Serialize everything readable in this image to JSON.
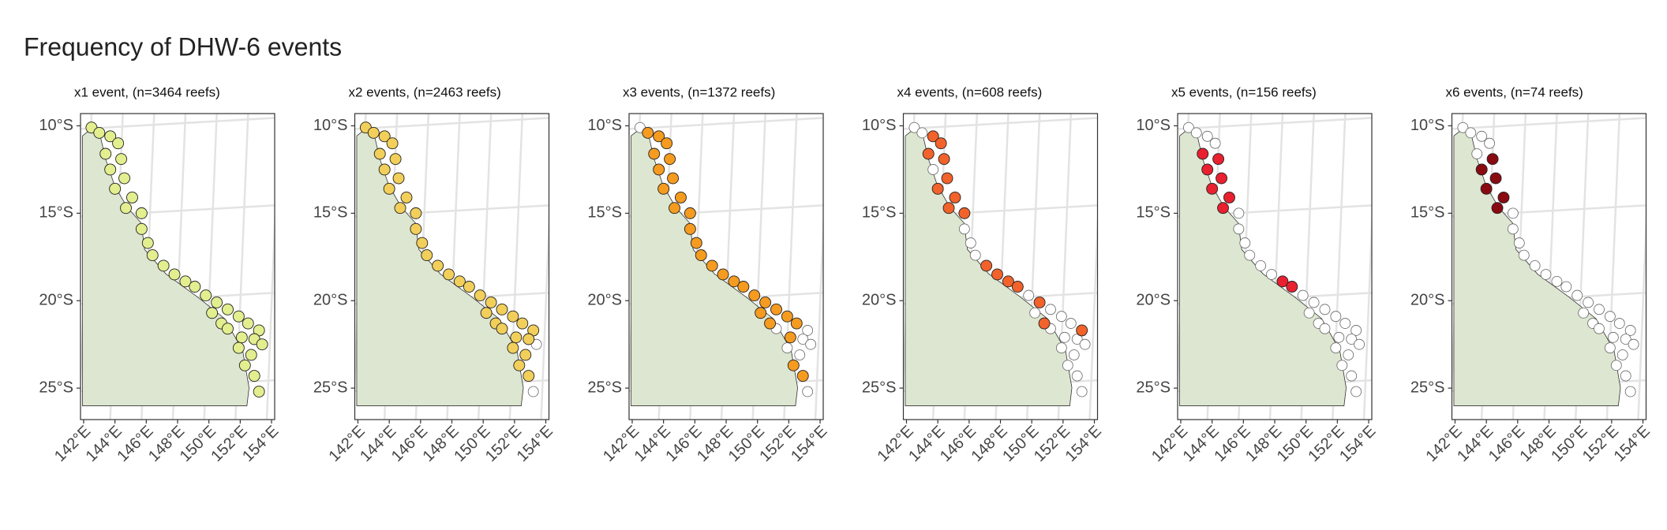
{
  "title": "Frequency of DHW-6 events",
  "all_reefs": {
    "x": [
      142.5,
      143.0,
      143.7,
      144.2,
      143.4,
      144.4,
      143.7,
      144.6,
      144.0,
      145.1,
      144.7,
      145.7,
      145.7,
      146.1,
      146.4,
      147.1,
      147.8,
      148.5,
      149.1,
      149.8,
      150.5,
      151.2,
      151.9,
      152.5,
      153.2,
      152.9,
      152.1,
      150.8,
      150.2,
      153.4,
      152.7,
      152.3,
      152.9,
      153.2,
      151.2,
      151.9
    ],
    "y": [
      -10.1,
      -10.4,
      -10.6,
      -11.0,
      -11.6,
      -11.9,
      -12.5,
      -13.0,
      -13.6,
      -14.1,
      -14.7,
      -15.0,
      -15.9,
      -16.7,
      -17.4,
      -18.0,
      -18.5,
      -18.9,
      -19.2,
      -19.7,
      -20.1,
      -20.5,
      -20.9,
      -21.3,
      -21.7,
      -22.2,
      -22.1,
      -21.3,
      -20.7,
      -22.5,
      -23.1,
      -23.7,
      -24.3,
      -25.2,
      -21.6,
      -22.7
    ]
  },
  "chart_data": [
    {
      "type": "scatter",
      "title": "x1 event, (n=3464 reefs)",
      "color": "#e3ee8f",
      "x": [
        142.5,
        143.0,
        143.7,
        144.2,
        143.4,
        144.4,
        143.7,
        144.6,
        144.0,
        145.1,
        144.7,
        145.7,
        145.7,
        146.1,
        146.4,
        147.1,
        147.8,
        148.5,
        149.1,
        149.8,
        150.5,
        151.2,
        151.9,
        152.5,
        153.2,
        152.9,
        152.1,
        150.8,
        150.2,
        153.4,
        152.7,
        152.3,
        152.9,
        153.2,
        151.2,
        151.9
      ],
      "y": [
        -10.1,
        -10.4,
        -10.6,
        -11.0,
        -11.6,
        -11.9,
        -12.5,
        -13.0,
        -13.6,
        -14.1,
        -14.7,
        -15.0,
        -15.9,
        -16.7,
        -17.4,
        -18.0,
        -18.5,
        -18.9,
        -19.2,
        -19.7,
        -20.1,
        -20.5,
        -20.9,
        -21.3,
        -21.7,
        -22.2,
        -22.1,
        -21.3,
        -20.7,
        -22.5,
        -23.1,
        -23.7,
        -24.3,
        -25.2,
        -21.6,
        -22.7
      ],
      "xlim": [
        141.8,
        154.2
      ],
      "ylim": [
        -26.8,
        -9.3
      ],
      "grid": true,
      "xticks": [
        {
          "value": 142,
          "label": "142°E"
        },
        {
          "value": 144,
          "label": "144°E"
        },
        {
          "value": 146,
          "label": "146°E"
        },
        {
          "value": 148,
          "label": "148°E"
        },
        {
          "value": 150,
          "label": "150°E"
        },
        {
          "value": 152,
          "label": "152°E"
        },
        {
          "value": 154,
          "label": "154°E"
        }
      ],
      "yticks": [
        {
          "value": -10,
          "label": "10°S"
        },
        {
          "value": -15,
          "label": "15°S"
        },
        {
          "value": -20,
          "label": "20°S"
        },
        {
          "value": -25,
          "label": "25°S"
        }
      ]
    },
    {
      "type": "scatter",
      "title": "x2 events, (n=2463 reefs)",
      "color": "#f2cf5a",
      "x": [
        142.5,
        143.0,
        143.7,
        144.2,
        143.4,
        144.4,
        143.7,
        144.6,
        144.0,
        145.1,
        144.7,
        145.7,
        145.7,
        146.1,
        146.4,
        147.1,
        147.8,
        148.5,
        149.1,
        149.8,
        150.5,
        151.2,
        151.9,
        152.5,
        153.2,
        152.9,
        152.1,
        150.8,
        150.2,
        152.7,
        152.3,
        152.9,
        151.2,
        151.9
      ],
      "y": [
        -10.1,
        -10.4,
        -10.6,
        -11.0,
        -11.6,
        -11.9,
        -12.5,
        -13.0,
        -13.6,
        -14.1,
        -14.7,
        -15.0,
        -15.9,
        -16.7,
        -17.4,
        -18.0,
        -18.5,
        -18.9,
        -19.2,
        -19.7,
        -20.1,
        -20.5,
        -20.9,
        -21.3,
        -21.7,
        -22.2,
        -22.1,
        -21.3,
        -20.7,
        -23.1,
        -23.7,
        -24.3,
        -21.6,
        -22.7
      ],
      "xlim": [
        141.8,
        154.2
      ],
      "ylim": [
        -26.8,
        -9.3
      ],
      "grid": true,
      "xticks": [
        {
          "value": 142,
          "label": "142°E"
        },
        {
          "value": 144,
          "label": "144°E"
        },
        {
          "value": 146,
          "label": "146°E"
        },
        {
          "value": 148,
          "label": "148°E"
        },
        {
          "value": 150,
          "label": "150°E"
        },
        {
          "value": 152,
          "label": "152°E"
        },
        {
          "value": 154,
          "label": "154°E"
        }
      ],
      "yticks": [
        {
          "value": -10,
          "label": "10°S"
        },
        {
          "value": -15,
          "label": "15°S"
        },
        {
          "value": -20,
          "label": "20°S"
        },
        {
          "value": -25,
          "label": "25°S"
        }
      ]
    },
    {
      "type": "scatter",
      "title": "x3 events, (n=1372 reefs)",
      "color": "#f59b1f",
      "x": [
        143.0,
        143.7,
        144.2,
        143.4,
        144.4,
        143.7,
        144.6,
        144.0,
        145.1,
        144.7,
        145.7,
        145.7,
        146.1,
        146.4,
        147.1,
        147.8,
        148.5,
        149.1,
        149.8,
        150.5,
        151.2,
        151.9,
        152.5,
        152.1,
        150.8,
        150.2,
        152.3,
        152.9
      ],
      "y": [
        -10.4,
        -10.6,
        -11.0,
        -11.6,
        -11.9,
        -12.5,
        -13.0,
        -13.6,
        -14.1,
        -14.7,
        -15.0,
        -15.9,
        -16.7,
        -17.4,
        -18.0,
        -18.5,
        -18.9,
        -19.2,
        -19.7,
        -20.1,
        -20.5,
        -20.9,
        -21.3,
        -22.1,
        -21.3,
        -20.7,
        -23.7,
        -24.3
      ],
      "xlim": [
        141.8,
        154.2
      ],
      "ylim": [
        -26.8,
        -9.3
      ],
      "grid": true,
      "xticks": [
        {
          "value": 142,
          "label": "142°E"
        },
        {
          "value": 144,
          "label": "144°E"
        },
        {
          "value": 146,
          "label": "146°E"
        },
        {
          "value": 148,
          "label": "148°E"
        },
        {
          "value": 150,
          "label": "150°E"
        },
        {
          "value": 152,
          "label": "152°E"
        },
        {
          "value": 154,
          "label": "154°E"
        }
      ],
      "yticks": [
        {
          "value": -10,
          "label": "10°S"
        },
        {
          "value": -15,
          "label": "15°S"
        },
        {
          "value": -20,
          "label": "20°S"
        },
        {
          "value": -25,
          "label": "25°S"
        }
      ]
    },
    {
      "type": "scatter",
      "title": "x4 events, (n=608 reefs)",
      "color": "#f2622b",
      "x": [
        143.7,
        144.2,
        143.4,
        144.4,
        144.6,
        144.0,
        145.1,
        144.7,
        145.7,
        147.1,
        147.8,
        148.5,
        149.1,
        150.5,
        150.8,
        153.2
      ],
      "y": [
        -10.6,
        -11.0,
        -11.6,
        -11.9,
        -13.0,
        -13.6,
        -14.1,
        -14.7,
        -15.0,
        -18.0,
        -18.5,
        -18.9,
        -19.2,
        -20.1,
        -21.3,
        -21.7
      ],
      "xlim": [
        141.8,
        154.2
      ],
      "ylim": [
        -26.8,
        -9.3
      ],
      "grid": true,
      "xticks": [
        {
          "value": 142,
          "label": "142°E"
        },
        {
          "value": 144,
          "label": "144°E"
        },
        {
          "value": 146,
          "label": "146°E"
        },
        {
          "value": 148,
          "label": "148°E"
        },
        {
          "value": 150,
          "label": "150°E"
        },
        {
          "value": 152,
          "label": "152°E"
        },
        {
          "value": 154,
          "label": "154°E"
        }
      ],
      "yticks": [
        {
          "value": -10,
          "label": "10°S"
        },
        {
          "value": -15,
          "label": "15°S"
        },
        {
          "value": -20,
          "label": "20°S"
        },
        {
          "value": -25,
          "label": "25°S"
        }
      ]
    },
    {
      "type": "scatter",
      "title": "x5 events, (n=156 reefs)",
      "color": "#e8202f",
      "x": [
        143.4,
        144.4,
        143.7,
        144.6,
        144.0,
        145.1,
        144.7,
        148.5,
        149.1
      ],
      "y": [
        -11.6,
        -11.9,
        -12.5,
        -13.0,
        -13.6,
        -14.1,
        -14.7,
        -18.9,
        -19.2
      ],
      "xlim": [
        141.8,
        154.2
      ],
      "ylim": [
        -26.8,
        -9.3
      ],
      "grid": true,
      "xticks": [
        {
          "value": 142,
          "label": "142°E"
        },
        {
          "value": 144,
          "label": "144°E"
        },
        {
          "value": 146,
          "label": "146°E"
        },
        {
          "value": 148,
          "label": "148°E"
        },
        {
          "value": 150,
          "label": "150°E"
        },
        {
          "value": 152,
          "label": "152°E"
        },
        {
          "value": 154,
          "label": "154°E"
        }
      ],
      "yticks": [
        {
          "value": -10,
          "label": "10°S"
        },
        {
          "value": -15,
          "label": "15°S"
        },
        {
          "value": -20,
          "label": "20°S"
        },
        {
          "value": -25,
          "label": "25°S"
        }
      ]
    },
    {
      "type": "scatter",
      "title": "x6 events, (n=74 reefs)",
      "color": "#8a0a12",
      "x": [
        144.4,
        143.7,
        144.6,
        144.0,
        145.1,
        144.7
      ],
      "y": [
        -11.9,
        -12.5,
        -13.0,
        -13.6,
        -14.1,
        -14.7
      ],
      "xlim": [
        141.8,
        154.2
      ],
      "ylim": [
        -26.8,
        -9.3
      ],
      "grid": true,
      "xticks": [
        {
          "value": 142,
          "label": "142°E"
        },
        {
          "value": 144,
          "label": "144°E"
        },
        {
          "value": 146,
          "label": "146°E"
        },
        {
          "value": 148,
          "label": "148°E"
        },
        {
          "value": 150,
          "label": "150°E"
        },
        {
          "value": 152,
          "label": "152°E"
        },
        {
          "value": 154,
          "label": "154°E"
        }
      ],
      "yticks": [
        {
          "value": -10,
          "label": "10°S"
        },
        {
          "value": -15,
          "label": "15°S"
        },
        {
          "value": -20,
          "label": "20°S"
        },
        {
          "value": -25,
          "label": "25°S"
        }
      ]
    }
  ]
}
